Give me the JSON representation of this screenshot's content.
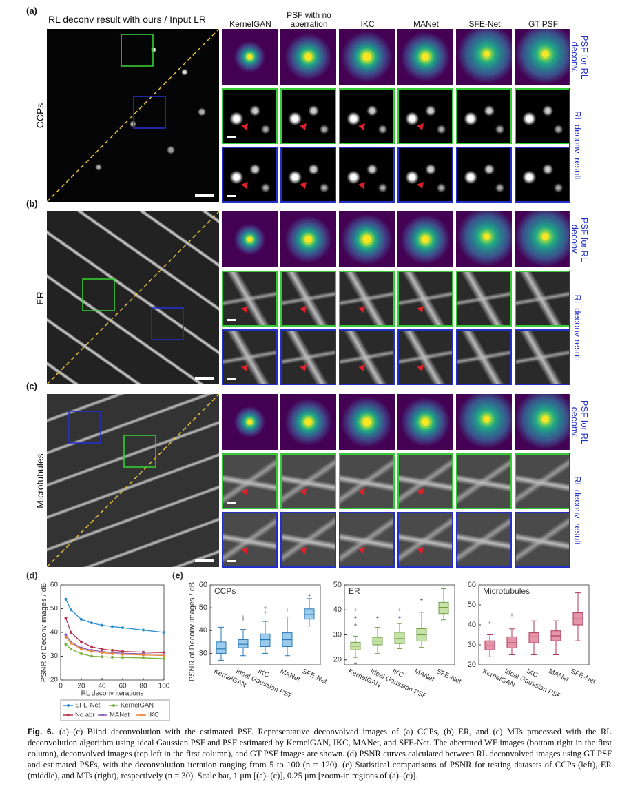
{
  "header": "RL deconv result with ours / Input LR",
  "columns": [
    "KernelGAN",
    "PSF with no aberration",
    "IKC",
    "MANet",
    "SFE-Net",
    "GT PSF"
  ],
  "rows": [
    {
      "label": "(a)",
      "sample": "CCPs",
      "psf_label": "PSF for RL deconv.",
      "result_label": "RL deconv. result"
    },
    {
      "label": "(b)",
      "sample": "ER",
      "psf_label": "PSF for RL deconv.",
      "result_label": "RL deconv result"
    },
    {
      "label": "(c)",
      "sample": "Microtubules",
      "psf_label": "PSF for RL deconv.",
      "result_label": "RL deconv. result"
    }
  ],
  "panel_labels": [
    "(d)",
    "(e)"
  ],
  "chart_data": [
    {
      "type": "line",
      "xlabel": "RL deconv iterations",
      "ylabel": "PSNR of Deconv images / dB",
      "x": [
        5,
        10,
        20,
        30,
        40,
        50,
        60,
        80,
        100
      ],
      "xlim": [
        0,
        100
      ],
      "xticks": [
        0,
        20,
        40,
        60,
        80,
        100
      ],
      "ylim": [
        20,
        60
      ],
      "yticks": [
        20,
        30,
        40,
        50,
        60
      ],
      "series": [
        {
          "name": "SFE-Net",
          "color": "#2a8fd0",
          "values": [
            54,
            49.5,
            45.5,
            44,
            43,
            42.5,
            42,
            41,
            40
          ]
        },
        {
          "name": "KernelGAN",
          "color": "#7cb342",
          "values": [
            35,
            33,
            31,
            30,
            29.8,
            29.6,
            29.5,
            29.3,
            29
          ]
        },
        {
          "name": "No abr",
          "color": "#b5334e",
          "values": [
            46,
            40,
            36,
            34,
            33,
            32.5,
            32,
            31.7,
            31.5
          ]
        },
        {
          "name": "MANet",
          "color": "#8e5bb5",
          "values": [
            39,
            36,
            33.5,
            32.5,
            32,
            31.5,
            31.2,
            31,
            30.8
          ]
        },
        {
          "name": "IKC",
          "color": "#e8893a",
          "values": [
            38,
            35.5,
            33,
            32,
            31.5,
            31,
            30.8,
            30.5,
            30.3
          ]
        }
      ]
    },
    {
      "type": "box",
      "title": "CCPs",
      "ylabel": "PSNR of Deconv images / dB",
      "color": "#2878b5",
      "fill": "#9dcbec",
      "categories": [
        "KernelGAN",
        "Ideal Gaussian PSF",
        "IKC",
        "MANet",
        "SFE-Net"
      ],
      "ylim": [
        25,
        60
      ],
      "yticks": [
        30,
        40,
        50,
        60
      ],
      "boxes": [
        {
          "min": 27,
          "q1": 30,
          "median": 32,
          "q3": 35,
          "max": 41.5,
          "outliers": []
        },
        {
          "min": 29,
          "q1": 32.5,
          "median": 34,
          "q3": 36,
          "max": 40.5,
          "outliers": [
            45,
            46
          ]
        },
        {
          "min": 30,
          "q1": 33,
          "median": 36,
          "q3": 38.5,
          "max": 44,
          "outliers": [
            48,
            50
          ]
        },
        {
          "min": 29,
          "q1": 33,
          "median": 36,
          "q3": 39,
          "max": 46,
          "outliers": [
            49
          ]
        },
        {
          "min": 42,
          "q1": 45,
          "median": 47,
          "q3": 49.5,
          "max": 54,
          "outliers": [
            55.5
          ]
        }
      ]
    },
    {
      "type": "box",
      "title": "ER",
      "color": "#6f9f3f",
      "fill": "#c6e2a8",
      "categories": [
        "KernelGAN",
        "Ideal Gaussian PSF",
        "IKC",
        "MANet",
        "SFE-Net"
      ],
      "ylim": [
        18,
        50
      ],
      "yticks": [
        20,
        30,
        40,
        50
      ],
      "boxes": [
        {
          "min": 21,
          "q1": 24,
          "median": 25.5,
          "q3": 27,
          "max": 29.5,
          "outliers": [
            40,
            37,
            34,
            18.5
          ]
        },
        {
          "min": 22.5,
          "q1": 26,
          "median": 27.5,
          "q3": 29,
          "max": 33,
          "outliers": [
            37
          ]
        },
        {
          "min": 24.5,
          "q1": 26.5,
          "median": 28.5,
          "q3": 31,
          "max": 34.5,
          "outliers": [
            37,
            40
          ]
        },
        {
          "min": 25,
          "q1": 27.5,
          "median": 30,
          "q3": 32.5,
          "max": 39,
          "outliers": [
            44
          ]
        },
        {
          "min": 36,
          "q1": 38.5,
          "median": 41,
          "q3": 43,
          "max": 48.5,
          "outliers": []
        }
      ]
    },
    {
      "type": "box",
      "title": "Microtubules",
      "color": "#b23a5a",
      "fill": "#e595a9",
      "categories": [
        "KernelGAN",
        "Ideal Gaussian PSF",
        "IKC",
        "MANet",
        "SFE-Net"
      ],
      "ylim": [
        20,
        60
      ],
      "yticks": [
        20,
        30,
        40,
        50,
        60
      ],
      "boxes": [
        {
          "min": 24,
          "q1": 27.5,
          "median": 29.5,
          "q3": 32,
          "max": 35,
          "outliers": [
            41
          ]
        },
        {
          "min": 25,
          "q1": 28.5,
          "median": 31,
          "q3": 34,
          "max": 38,
          "outliers": [
            45
          ]
        },
        {
          "min": 25,
          "q1": 31,
          "median": 34,
          "q3": 36,
          "max": 42,
          "outliers": []
        },
        {
          "min": 25,
          "q1": 32,
          "median": 34.5,
          "q3": 37,
          "max": 42,
          "outliers": []
        },
        {
          "min": 32,
          "q1": 40,
          "median": 43,
          "q3": 46,
          "max": 56,
          "outliers": []
        }
      ]
    }
  ],
  "caption": {
    "label": "Fig. 6.",
    "text": "(a)–(c) Blind deconvolution with the estimated PSF. Representative deconvolved images of (a) CCPs, (b) ER, and (c) MTs processed with the RL deconvolution algorithm using ideal Gaussian PSF and PSF estimated by KernelGAN, IKC, MANet, and SFE-Net. The aberrated WF images (bottom right in the first column), deconvolved images (top left in the first column), and GT PSF images are shown. (d) PSNR curves calculated between RL deconvolved images using GT PSF and estimated PSFs, with the deconvolution iteration ranging from 5 to 100 (n = 120). (e) Statistical comparisons of PSNR for testing datasets of CCPs (left), ER (middle), and MTs (right), respectively (n = 30). Scale bar, 1 μm [(a)–(c)], 0.25 μm [zoom-in regions of (a)–(c)]."
  }
}
